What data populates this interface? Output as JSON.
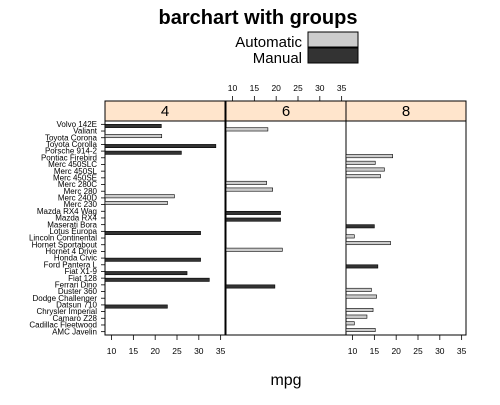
{
  "chart_data": {
    "type": "bar",
    "orientation": "horizontal",
    "title": "barchart with groups",
    "xlabel": "mpg",
    "ylabel": "",
    "xlim": [
      8.5,
      36
    ],
    "x_ticks": [
      10,
      15,
      20,
      25,
      30,
      35
    ],
    "legend": {
      "placement": "top",
      "entries": [
        {
          "name": "Automatic",
          "color": "#cccccc"
        },
        {
          "name": "Manual",
          "color": "#333333"
        }
      ]
    },
    "colors": {
      "automatic": "#cccccc",
      "manual": "#333333",
      "strip": "#ffe5cc"
    },
    "panels": [
      "4",
      "6",
      "8"
    ],
    "categories": [
      "Volvo 142E",
      "Valiant",
      "Toyota Corona",
      "Toyota Corolla",
      "Porsche 914-2",
      "Pontiac Firebird",
      "Merc 450SLC",
      "Merc 450SL",
      "Merc 450SE",
      "Merc 280C",
      "Merc 280",
      "Merc 240D",
      "Merc 230",
      "Mazda RX4 Wag",
      "Mazda RX4",
      "Maserati Bora",
      "Lotus Europa",
      "Lincoln Continental",
      "Hornet Sportabout",
      "Hornet 4 Drive",
      "Honda Civic",
      "Ford Pantera L",
      "Fiat X1-9",
      "Fiat 128",
      "Ferrari Dino",
      "Duster 360",
      "Dodge Challenger",
      "Datsun 710",
      "Chrysler Imperial",
      "Camaro Z28",
      "Cadillac Fleetwood",
      "AMC Javelin"
    ],
    "bars": [
      {
        "car": "Volvo 142E",
        "panel": "4",
        "group": "Manual",
        "value": 21.4
      },
      {
        "car": "Valiant",
        "panel": "6",
        "group": "Automatic",
        "value": 18.1
      },
      {
        "car": "Toyota Corona",
        "panel": "4",
        "group": "Automatic",
        "value": 21.5
      },
      {
        "car": "Toyota Corolla",
        "panel": "4",
        "group": "Manual",
        "value": 33.9
      },
      {
        "car": "Porsche 914-2",
        "panel": "4",
        "group": "Manual",
        "value": 26.0
      },
      {
        "car": "Pontiac Firebird",
        "panel": "8",
        "group": "Automatic",
        "value": 19.2
      },
      {
        "car": "Merc 450SLC",
        "panel": "8",
        "group": "Automatic",
        "value": 15.2
      },
      {
        "car": "Merc 450SL",
        "panel": "8",
        "group": "Automatic",
        "value": 17.3
      },
      {
        "car": "Merc 450SE",
        "panel": "8",
        "group": "Automatic",
        "value": 16.4
      },
      {
        "car": "Merc 280C",
        "panel": "6",
        "group": "Automatic",
        "value": 17.8
      },
      {
        "car": "Merc 280",
        "panel": "6",
        "group": "Automatic",
        "value": 19.2
      },
      {
        "car": "Merc 240D",
        "panel": "4",
        "group": "Automatic",
        "value": 24.4
      },
      {
        "car": "Merc 230",
        "panel": "4",
        "group": "Automatic",
        "value": 22.8
      },
      {
        "car": "Mazda RX4 Wag",
        "panel": "6",
        "group": "Manual",
        "value": 21.0
      },
      {
        "car": "Mazda RX4",
        "panel": "6",
        "group": "Manual",
        "value": 21.0
      },
      {
        "car": "Maserati Bora",
        "panel": "8",
        "group": "Manual",
        "value": 15.0
      },
      {
        "car": "Lotus Europa",
        "panel": "4",
        "group": "Manual",
        "value": 30.4
      },
      {
        "car": "Lincoln Continental",
        "panel": "8",
        "group": "Automatic",
        "value": 10.4
      },
      {
        "car": "Hornet Sportabout",
        "panel": "8",
        "group": "Automatic",
        "value": 18.7
      },
      {
        "car": "Hornet 4 Drive",
        "panel": "6",
        "group": "Automatic",
        "value": 21.4
      },
      {
        "car": "Honda Civic",
        "panel": "4",
        "group": "Manual",
        "value": 30.4
      },
      {
        "car": "Ford Pantera L",
        "panel": "8",
        "group": "Manual",
        "value": 15.8
      },
      {
        "car": "Fiat X1-9",
        "panel": "4",
        "group": "Manual",
        "value": 27.3
      },
      {
        "car": "Fiat 128",
        "panel": "4",
        "group": "Manual",
        "value": 32.4
      },
      {
        "car": "Ferrari Dino",
        "panel": "6",
        "group": "Manual",
        "value": 19.7
      },
      {
        "car": "Duster 360",
        "panel": "8",
        "group": "Automatic",
        "value": 14.3
      },
      {
        "car": "Dodge Challenger",
        "panel": "8",
        "group": "Automatic",
        "value": 15.5
      },
      {
        "car": "Datsun 710",
        "panel": "4",
        "group": "Manual",
        "value": 22.8
      },
      {
        "car": "Chrysler Imperial",
        "panel": "8",
        "group": "Automatic",
        "value": 14.7
      },
      {
        "car": "Camaro Z28",
        "panel": "8",
        "group": "Automatic",
        "value": 13.3
      },
      {
        "car": "Cadillac Fleetwood",
        "panel": "8",
        "group": "Automatic",
        "value": 10.4
      },
      {
        "car": "AMC Javelin",
        "panel": "8",
        "group": "Automatic",
        "value": 15.2
      }
    ]
  }
}
